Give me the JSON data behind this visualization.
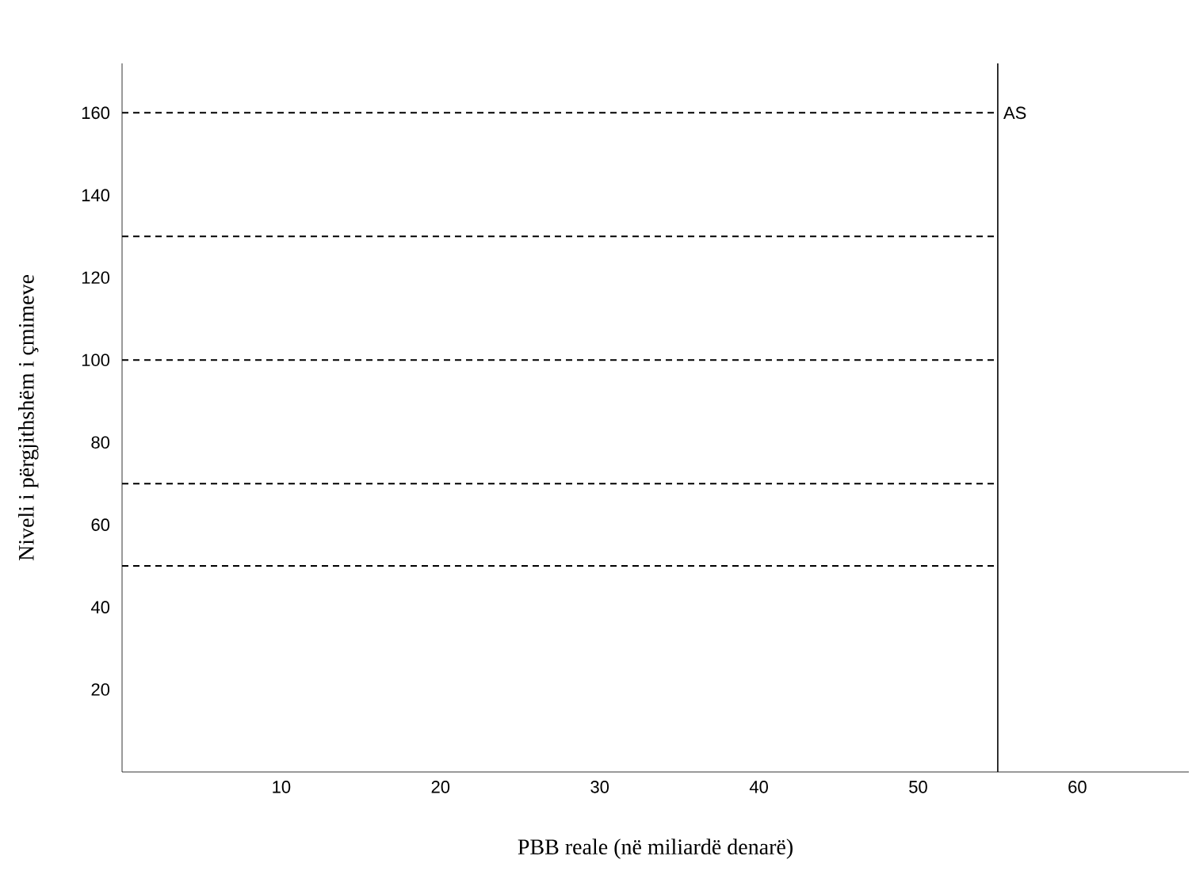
{
  "chart_data": {
    "type": "line",
    "xlabel": "PBB reale (në miliardë denarë)",
    "ylabel": "Niveli i përgjithshëm i çmimeve",
    "xlim": [
      0,
      67
    ],
    "ylim": [
      0,
      172
    ],
    "xticks": [
      10,
      20,
      30,
      40,
      50,
      60
    ],
    "yticks": [
      20,
      40,
      60,
      80,
      100,
      120,
      140,
      160
    ],
    "line_style": "dashed",
    "x": [
      0,
      55
    ],
    "series": [
      {
        "color": "#000000",
        "values": [
          160,
          160
        ]
      },
      {
        "color": "#000000",
        "values": [
          130,
          130
        ]
      },
      {
        "color": "#000000",
        "values": [
          100,
          100
        ]
      },
      {
        "color": "#000000",
        "values": [
          70,
          70
        ]
      },
      {
        "color": "#000000",
        "values": [
          50,
          50
        ]
      }
    ],
    "ref_lines": [
      {
        "axis": "x",
        "value": 55,
        "label": "AS",
        "color": "#000000",
        "line_style": "solid"
      }
    ]
  }
}
